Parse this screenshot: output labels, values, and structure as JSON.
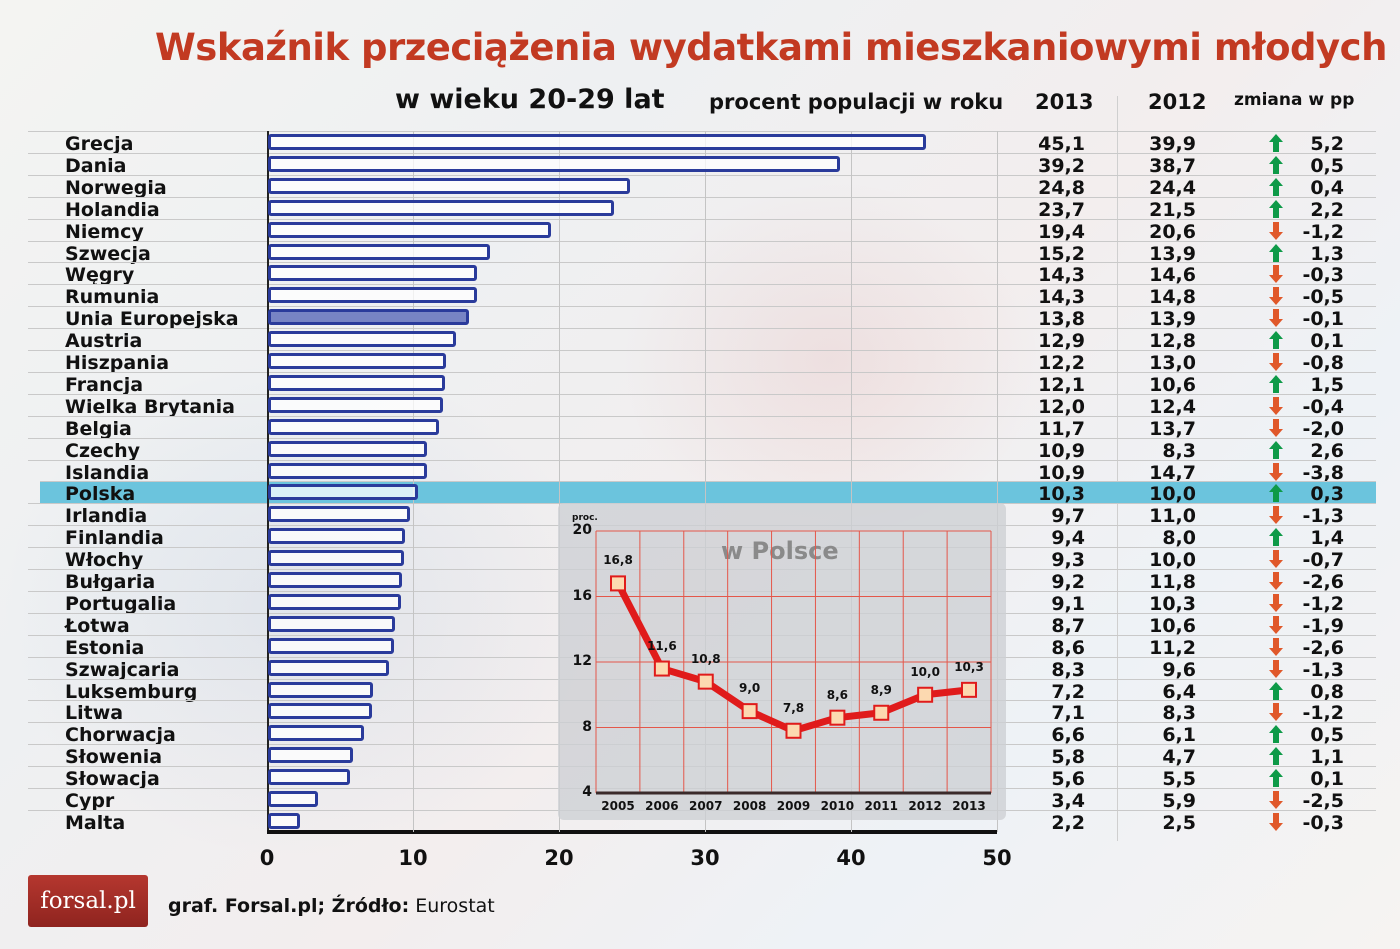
{
  "title": "Wskaźnik przeciążenia wydatkami mieszkaniowymi młodych",
  "subtitle": "w wieku 20-29 lat",
  "header": {
    "percent_label": "procent populacji w roku",
    "col_2013": "2013",
    "col_2012": "2012",
    "col_change": "zmiana w pp"
  },
  "colors": {
    "title": "#c23a22",
    "bar_border": "#2a3b9b",
    "eu_bar_fill": "#7784c4",
    "highlight_row": "#6bc4dd",
    "arrow_up": "#0e9a48",
    "arrow_down": "#e0582a",
    "inset_line": "#e01b1b",
    "inset_marker": "#fcd9b0"
  },
  "rows": [
    {
      "country": "Grecja",
      "v2013": "45,1",
      "v2012": "39,9",
      "dir": "up",
      "change": "5,2"
    },
    {
      "country": "Dania",
      "v2013": "39,2",
      "v2012": "38,7",
      "dir": "up",
      "change": "0,5"
    },
    {
      "country": "Norwegia",
      "v2013": "24,8",
      "v2012": "24,4",
      "dir": "up",
      "change": "0,4"
    },
    {
      "country": "Holandia",
      "v2013": "23,7",
      "v2012": "21,5",
      "dir": "up",
      "change": "2,2"
    },
    {
      "country": "Niemcy",
      "v2013": "19,4",
      "v2012": "20,6",
      "dir": "down",
      "change": "-1,2"
    },
    {
      "country": "Szwecja",
      "v2013": "15,2",
      "v2012": "13,9",
      "dir": "up",
      "change": "1,3"
    },
    {
      "country": "Węgry",
      "v2013": "14,3",
      "v2012": "14,6",
      "dir": "down",
      "change": "-0,3"
    },
    {
      "country": "Rumunia",
      "v2013": "14,3",
      "v2012": "14,8",
      "dir": "down",
      "change": "-0,5"
    },
    {
      "country": "Unia Europejska",
      "v2013": "13,8",
      "v2012": "13,9",
      "dir": "down",
      "change": "-0,1"
    },
    {
      "country": "Austria",
      "v2013": "12,9",
      "v2012": "12,8",
      "dir": "up",
      "change": "0,1"
    },
    {
      "country": "Hiszpania",
      "v2013": "12,2",
      "v2012": "13,0",
      "dir": "down",
      "change": "-0,8"
    },
    {
      "country": "Francja",
      "v2013": "12,1",
      "v2012": "10,6",
      "dir": "up",
      "change": "1,5"
    },
    {
      "country": "Wielka Brytania",
      "v2013": "12,0",
      "v2012": "12,4",
      "dir": "down",
      "change": "-0,4"
    },
    {
      "country": "Belgia",
      "v2013": "11,7",
      "v2012": "13,7",
      "dir": "down",
      "change": "-2,0"
    },
    {
      "country": "Czechy",
      "v2013": "10,9",
      "v2012": "8,3",
      "dir": "up",
      "change": "2,6"
    },
    {
      "country": "Islandia",
      "v2013": "10,9",
      "v2012": "14,7",
      "dir": "down",
      "change": "-3,8"
    },
    {
      "country": "Polska",
      "v2013": "10,3",
      "v2012": "10,0",
      "dir": "up",
      "change": "0,3"
    },
    {
      "country": "Irlandia",
      "v2013": "9,7",
      "v2012": "11,0",
      "dir": "down",
      "change": "-1,3"
    },
    {
      "country": "Finlandia",
      "v2013": "9,4",
      "v2012": "8,0",
      "dir": "up",
      "change": "1,4"
    },
    {
      "country": "Włochy",
      "v2013": "9,3",
      "v2012": "10,0",
      "dir": "down",
      "change": "-0,7"
    },
    {
      "country": "Bułgaria",
      "v2013": "9,2",
      "v2012": "11,8",
      "dir": "down",
      "change": "-2,6"
    },
    {
      "country": "Portugalia",
      "v2013": "9,1",
      "v2012": "10,3",
      "dir": "down",
      "change": "-1,2"
    },
    {
      "country": "Łotwa",
      "v2013": "8,7",
      "v2012": "10,6",
      "dir": "down",
      "change": "-1,9"
    },
    {
      "country": "Estonia",
      "v2013": "8,6",
      "v2012": "11,2",
      "dir": "down",
      "change": "-2,6"
    },
    {
      "country": "Szwajcaria",
      "v2013": "8,3",
      "v2012": "9,6",
      "dir": "down",
      "change": "-1,3"
    },
    {
      "country": "Luksemburg",
      "v2013": "7,2",
      "v2012": "6,4",
      "dir": "up",
      "change": "0,8"
    },
    {
      "country": "Litwa",
      "v2013": "7,1",
      "v2012": "8,3",
      "dir": "down",
      "change": "-1,2"
    },
    {
      "country": "Chorwacja",
      "v2013": "6,6",
      "v2012": "6,1",
      "dir": "up",
      "change": "0,5"
    },
    {
      "country": "Słowenia",
      "v2013": "5,8",
      "v2012": "4,7",
      "dir": "up",
      "change": "1,1"
    },
    {
      "country": "Słowacja",
      "v2013": "5,6",
      "v2012": "5,5",
      "dir": "up",
      "change": "0,1"
    },
    {
      "country": "Cypr",
      "v2013": "3,4",
      "v2012": "5,9",
      "dir": "down",
      "change": "-2,5"
    },
    {
      "country": "Malta",
      "v2013": "2,2",
      "v2012": "2,5",
      "dir": "down",
      "change": "-0,3"
    }
  ],
  "x_axis": {
    "ticks": [
      "0",
      "10",
      "20",
      "30",
      "40",
      "50"
    ]
  },
  "inset": {
    "title": "w Polsce",
    "unit": "proc.",
    "y_ticks": [
      "20",
      "16",
      "12",
      "8",
      "4"
    ],
    "years": [
      "2005",
      "2006",
      "2007",
      "2008",
      "2009",
      "2010",
      "2011",
      "2012",
      "2013"
    ],
    "labels": [
      "16,8",
      "11,6",
      "10,8",
      "9,0",
      "7,8",
      "8,6",
      "8,9",
      "10,0",
      "10,3"
    ]
  },
  "footer": {
    "logo": "forsal.pl",
    "source_prefix": "graf. Forsal.pl; Źródło:",
    "source_name": " Eurostat"
  },
  "chart_data": [
    {
      "type": "bar",
      "orientation": "horizontal",
      "title": "Wskaźnik przeciążenia wydatkami mieszkaniowymi młodych w wieku 20-29 lat",
      "xlabel": "procent populacji w roku",
      "ylabel": "",
      "xlim": [
        0,
        50
      ],
      "x_ticks": [
        0,
        10,
        20,
        30,
        40,
        50
      ],
      "grid": true,
      "categories": [
        "Grecja",
        "Dania",
        "Norwegia",
        "Holandia",
        "Niemcy",
        "Szwecja",
        "Węgry",
        "Rumunia",
        "Unia Europejska",
        "Austria",
        "Hiszpania",
        "Francja",
        "Wielka Brytania",
        "Belgia",
        "Czechy",
        "Islandia",
        "Polska",
        "Irlandia",
        "Finlandia",
        "Włochy",
        "Bułgaria",
        "Portugalia",
        "Łotwa",
        "Estonia",
        "Szwajcaria",
        "Luksemburg",
        "Litwa",
        "Chorwacja",
        "Słowenia",
        "Słowacja",
        "Cypr",
        "Malta"
      ],
      "series": [
        {
          "name": "2013",
          "values": [
            45.1,
            39.2,
            24.8,
            23.7,
            19.4,
            15.2,
            14.3,
            14.3,
            13.8,
            12.9,
            12.2,
            12.1,
            12.0,
            11.7,
            10.9,
            10.9,
            10.3,
            9.7,
            9.4,
            9.3,
            9.2,
            9.1,
            8.7,
            8.6,
            8.3,
            7.2,
            7.1,
            6.6,
            5.8,
            5.6,
            3.4,
            2.2
          ]
        },
        {
          "name": "2012",
          "values": [
            39.9,
            38.7,
            24.4,
            21.5,
            20.6,
            13.9,
            14.6,
            14.8,
            13.9,
            12.8,
            13.0,
            10.6,
            12.4,
            13.7,
            8.3,
            14.7,
            10.0,
            11.0,
            8.0,
            10.0,
            11.8,
            10.3,
            10.6,
            11.2,
            9.6,
            6.4,
            8.3,
            6.1,
            4.7,
            5.5,
            5.9,
            2.5
          ]
        },
        {
          "name": "zmiana w pp",
          "values": [
            5.2,
            0.5,
            0.4,
            2.2,
            -1.2,
            1.3,
            -0.3,
            -0.5,
            -0.1,
            0.1,
            -0.8,
            1.5,
            -0.4,
            -2.0,
            2.6,
            -3.8,
            0.3,
            -1.3,
            1.4,
            -0.7,
            -2.6,
            -1.2,
            -1.9,
            -2.6,
            -1.3,
            0.8,
            -1.2,
            0.5,
            1.1,
            0.1,
            -2.5,
            -0.3
          ]
        }
      ],
      "highlighted": [
        "Polska",
        "Unia Europejska"
      ],
      "source": "graf. Forsal.pl; Źródło: Eurostat"
    },
    {
      "type": "line",
      "title": "w Polsce",
      "ylabel": "proc.",
      "x": [
        2005,
        2006,
        2007,
        2008,
        2009,
        2010,
        2011,
        2012,
        2013
      ],
      "series": [
        {
          "name": "Polska",
          "values": [
            16.8,
            11.6,
            10.8,
            9.0,
            7.8,
            8.6,
            8.9,
            10.0,
            10.3
          ]
        }
      ],
      "ylim": [
        4,
        20
      ],
      "y_ticks": [
        4,
        8,
        12,
        16,
        20
      ],
      "grid": true
    }
  ]
}
